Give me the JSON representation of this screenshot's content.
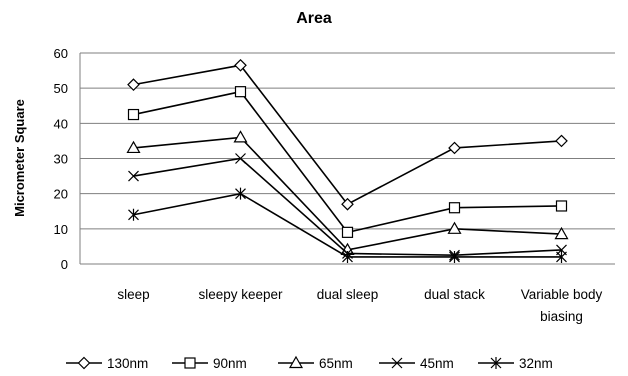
{
  "chart_data": {
    "type": "line",
    "title": "Area",
    "xlabel": "",
    "ylabel": "Micrometer Square",
    "ylim": [
      0,
      60
    ],
    "yticks": [
      0,
      10,
      20,
      30,
      40,
      50,
      60
    ],
    "grid": true,
    "legend_position": "bottom",
    "categories": [
      [
        "sleep"
      ],
      [
        "sleepy keeper"
      ],
      [
        "dual sleep"
      ],
      [
        "dual stack"
      ],
      [
        "Variable body",
        "biasing"
      ]
    ],
    "series": [
      {
        "name": "130nm",
        "marker": "diamond",
        "values": [
          51,
          56.5,
          17,
          33,
          35
        ]
      },
      {
        "name": "90nm",
        "marker": "square",
        "values": [
          42.5,
          49,
          9,
          16,
          16.5
        ]
      },
      {
        "name": "65nm",
        "marker": "triangle",
        "values": [
          33,
          36,
          4,
          10,
          8.5
        ]
      },
      {
        "name": "45nm",
        "marker": "x",
        "values": [
          25,
          30,
          3,
          2.5,
          4
        ]
      },
      {
        "name": "32nm",
        "marker": "star",
        "values": [
          14,
          20,
          2,
          2,
          2
        ]
      }
    ]
  }
}
